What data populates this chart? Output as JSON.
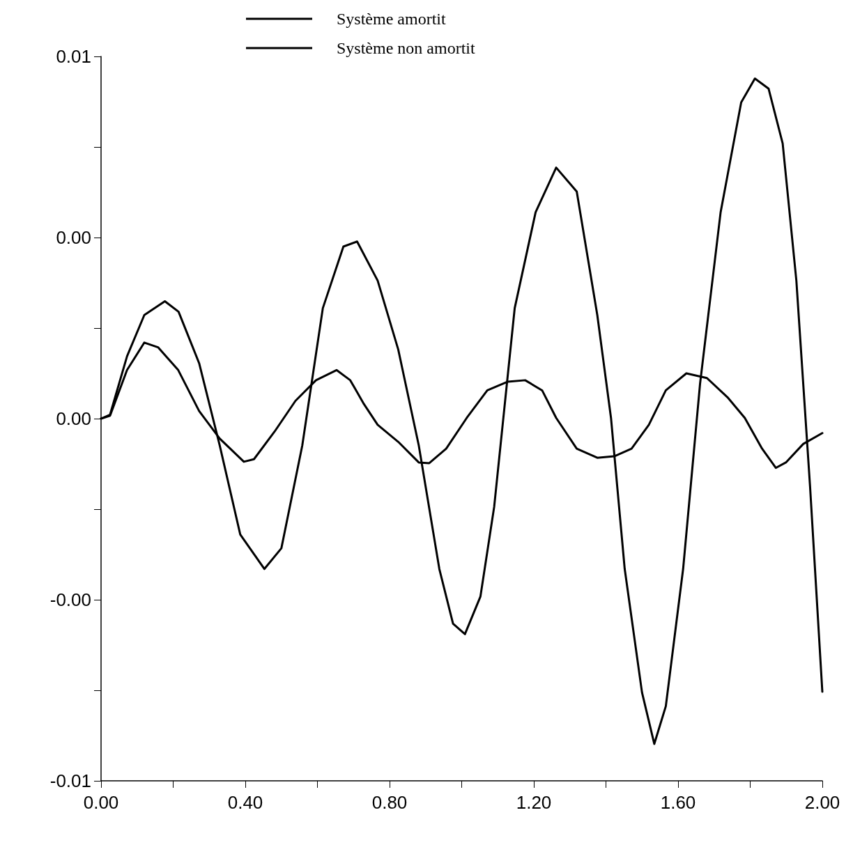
{
  "chart_data": {
    "type": "line",
    "legend": "top",
    "grid": false,
    "line_style": "solid",
    "marker": "none",
    "xlim": [
      0,
      2
    ],
    "ylim": [
      -0.01,
      0.01
    ],
    "xticks": [
      {
        "value": 0,
        "label": "0.00"
      },
      {
        "value": 0.2,
        "label": null
      },
      {
        "value": 0.4,
        "label": "0.40"
      },
      {
        "value": 0.6,
        "label": null
      },
      {
        "value": 0.8,
        "label": "0.80"
      },
      {
        "value": 1,
        "label": null
      },
      {
        "value": 1.2,
        "label": "1.20"
      },
      {
        "value": 1.4,
        "label": null
      },
      {
        "value": 1.6,
        "label": "1.60"
      },
      {
        "value": 1.8,
        "label": null
      },
      {
        "value": 2,
        "label": "2.00"
      }
    ],
    "yticks": [
      {
        "value": -0.01,
        "label": "-0.01"
      },
      {
        "value": -0.0075,
        "label": null
      },
      {
        "value": -0.005,
        "label": "-0.00"
      },
      {
        "value": -0.0025,
        "label": null
      },
      {
        "value": 0,
        "label": "0.00"
      },
      {
        "value": 0.0025,
        "label": null
      },
      {
        "value": 0.005,
        "label": "0.00"
      },
      {
        "value": 0.0075,
        "label": null
      },
      {
        "value": 0.01,
        "label": "0.01"
      }
    ],
    "series": [
      {
        "name": "Système amortit",
        "color": "#000000",
        "x": [
          0,
          0.025,
          0.072,
          0.12,
          0.158,
          0.214,
          0.272,
          0.329,
          0.396,
          0.424,
          0.481,
          0.539,
          0.596,
          0.653,
          0.691,
          0.729,
          0.767,
          0.824,
          0.881,
          0.91,
          0.957,
          1.014,
          1.071,
          1.128,
          1.176,
          1.223,
          1.262,
          1.319,
          1.376,
          1.423,
          1.471,
          1.519,
          1.566,
          1.623,
          1.68,
          1.737,
          1.785,
          1.833,
          1.871,
          1.899,
          1.947,
          2
        ],
        "values": [
          0,
          8e-05,
          0.00134,
          0.0021,
          0.00197,
          0.00134,
          0.00021,
          -0.00055,
          -0.00119,
          -0.00112,
          -0.00036,
          0.00049,
          0.00106,
          0.00134,
          0.00106,
          0.0004,
          -0.00017,
          -0.00064,
          -0.00121,
          -0.00123,
          -0.00083,
          2e-05,
          0.00078,
          0.00102,
          0.00106,
          0.00078,
          2e-05,
          -0.00083,
          -0.00108,
          -0.00104,
          -0.00083,
          -0.00017,
          0.00078,
          0.00125,
          0.00112,
          0.00059,
          2e-05,
          -0.00083,
          -0.00136,
          -0.00121,
          -0.0007,
          -0.0004
        ]
      },
      {
        "name": "Système non amortit",
        "color": "#000000",
        "x": [
          0,
          0.025,
          0.072,
          0.12,
          0.177,
          0.215,
          0.272,
          0.329,
          0.386,
          0.453,
          0.5,
          0.558,
          0.615,
          0.672,
          0.71,
          0.767,
          0.824,
          0.881,
          0.938,
          0.976,
          1.009,
          1.052,
          1.09,
          1.147,
          1.205,
          1.262,
          1.319,
          1.376,
          1.414,
          1.452,
          1.5,
          1.534,
          1.566,
          1.614,
          1.661,
          1.718,
          1.775,
          1.813,
          1.851,
          1.89,
          1.928,
          1.966,
          2
        ],
        "values": [
          0,
          0.00011,
          0.00172,
          0.00286,
          0.00324,
          0.00295,
          0.00153,
          -0.00074,
          -0.0032,
          -0.00415,
          -0.00358,
          -0.00074,
          0.00305,
          0.00475,
          0.00489,
          0.00381,
          0.00191,
          -0.00074,
          -0.00415,
          -0.00566,
          -0.00595,
          -0.00491,
          -0.00244,
          0.00305,
          0.0057,
          0.00693,
          0.00627,
          0.00286,
          2e-05,
          -0.00415,
          -0.00756,
          -0.00898,
          -0.00794,
          -0.00415,
          0.00097,
          0.0057,
          0.00873,
          0.00939,
          0.00911,
          0.0076,
          0.00381,
          -0.00188,
          -0.00754
        ]
      }
    ]
  }
}
